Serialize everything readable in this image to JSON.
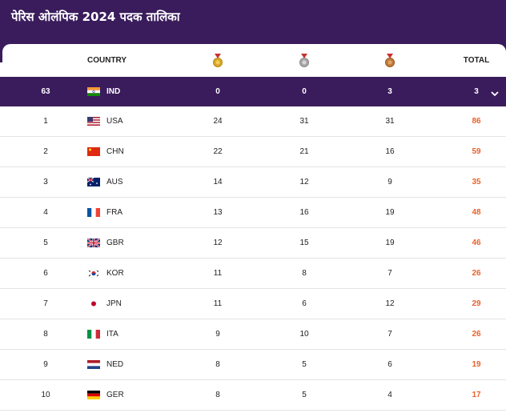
{
  "title": "पेरिस ओलंपिक 2024 पदक तालिका",
  "columns": {
    "country": "COUNTRY",
    "gold_icon": "gold-medal-icon",
    "silver_icon": "silver-medal-icon",
    "bronze_icon": "bronze-medal-icon",
    "total": "TOTAL"
  },
  "colors": {
    "header_bg": "#3a1c5c",
    "total_accent": "#e8622c",
    "gold": "#d9a728",
    "silver": "#a7a7a7",
    "bronze": "#c07a3a"
  },
  "highlight": {
    "rank": "63",
    "country": "IND",
    "gold": "0",
    "silver": "0",
    "bronze": "3",
    "total": "3",
    "expand_icon": "chevron-down-icon"
  },
  "rows": [
    {
      "rank": "1",
      "country": "USA",
      "gold": "24",
      "silver": "31",
      "bronze": "31",
      "total": "86"
    },
    {
      "rank": "2",
      "country": "CHN",
      "gold": "22",
      "silver": "21",
      "bronze": "16",
      "total": "59"
    },
    {
      "rank": "3",
      "country": "AUS",
      "gold": "14",
      "silver": "12",
      "bronze": "9",
      "total": "35"
    },
    {
      "rank": "4",
      "country": "FRA",
      "gold": "13",
      "silver": "16",
      "bronze": "19",
      "total": "48"
    },
    {
      "rank": "5",
      "country": "GBR",
      "gold": "12",
      "silver": "15",
      "bronze": "19",
      "total": "46"
    },
    {
      "rank": "6",
      "country": "KOR",
      "gold": "11",
      "silver": "8",
      "bronze": "7",
      "total": "26"
    },
    {
      "rank": "7",
      "country": "JPN",
      "gold": "11",
      "silver": "6",
      "bronze": "12",
      "total": "29"
    },
    {
      "rank": "8",
      "country": "ITA",
      "gold": "9",
      "silver": "10",
      "bronze": "7",
      "total": "26"
    },
    {
      "rank": "9",
      "country": "NED",
      "gold": "8",
      "silver": "5",
      "bronze": "6",
      "total": "19"
    },
    {
      "rank": "10",
      "country": "GER",
      "gold": "8",
      "silver": "5",
      "bronze": "4",
      "total": "17"
    }
  ]
}
